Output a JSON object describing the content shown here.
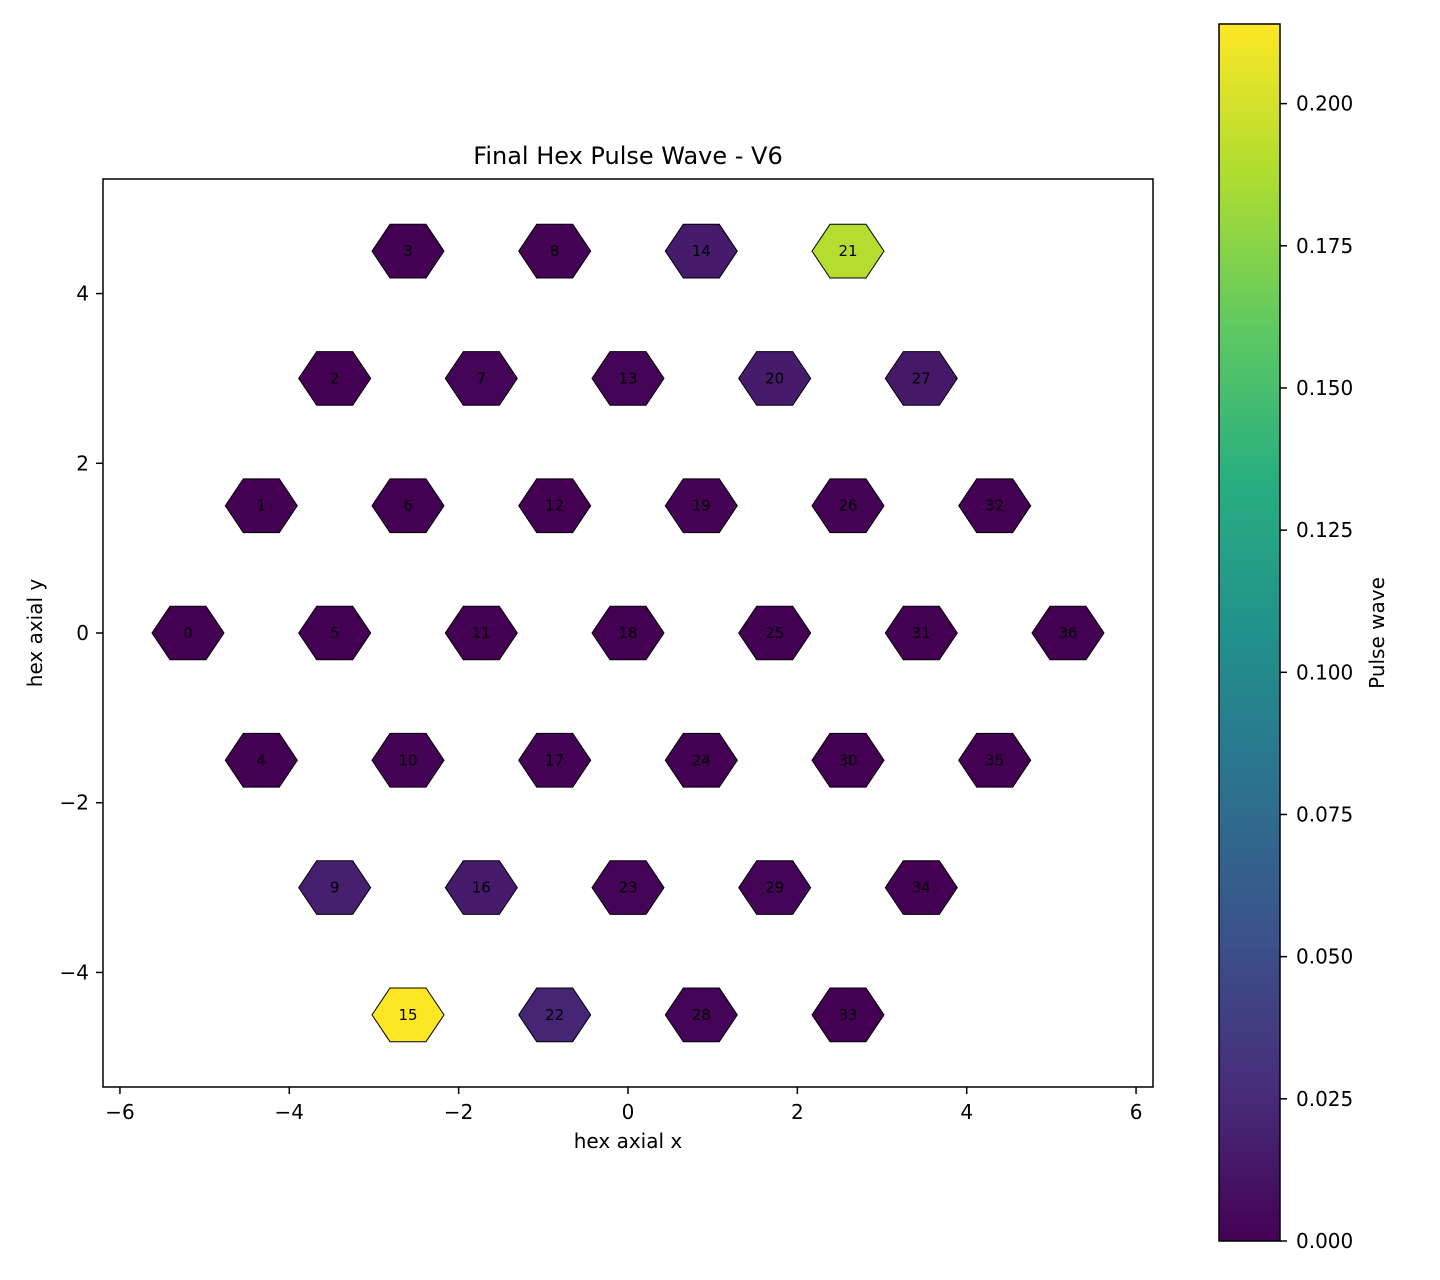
{
  "chart_data": {
    "type": "heatmap",
    "title": "Final Hex Pulse Wave - V6",
    "xlabel": "hex axial x",
    "ylabel": "hex axial y",
    "xlim": [
      -6.2,
      6.2
    ],
    "ylim": [
      -5.35,
      5.35
    ],
    "xticks": [
      -6,
      -4,
      -2,
      0,
      2,
      4,
      6
    ],
    "yticks": [
      -4,
      -2,
      0,
      2,
      4
    ],
    "colorbar": {
      "label": "Pulse wave",
      "colormap": "viridis",
      "range": [
        0.0,
        0.214
      ],
      "ticks": [
        0.0,
        0.025,
        0.05,
        0.075,
        0.1,
        0.125,
        0.15,
        0.175,
        0.2
      ],
      "tick_labels": [
        "0.000",
        "0.025",
        "0.050",
        "0.075",
        "0.100",
        "0.125",
        "0.150",
        "0.175",
        "0.200"
      ]
    },
    "cells": [
      {
        "id": "0",
        "x": -5.196,
        "y": 0.0,
        "value": 0.0
      },
      {
        "id": "1",
        "x": -4.33,
        "y": 1.5,
        "value": 0.0
      },
      {
        "id": "2",
        "x": -3.464,
        "y": 3.0,
        "value": 0.0
      },
      {
        "id": "3",
        "x": -2.598,
        "y": 4.5,
        "value": 0.0
      },
      {
        "id": "4",
        "x": -4.33,
        "y": -1.5,
        "value": 0.0
      },
      {
        "id": "5",
        "x": -3.464,
        "y": 0.0,
        "value": 0.0
      },
      {
        "id": "6",
        "x": -2.598,
        "y": 1.5,
        "value": 0.0
      },
      {
        "id": "7",
        "x": -1.732,
        "y": 3.0,
        "value": 0.002
      },
      {
        "id": "8",
        "x": -0.866,
        "y": 4.5,
        "value": 0.001
      },
      {
        "id": "9",
        "x": -3.464,
        "y": -3.0,
        "value": 0.018
      },
      {
        "id": "10",
        "x": -2.598,
        "y": -1.5,
        "value": 0.001
      },
      {
        "id": "11",
        "x": -1.732,
        "y": 0.0,
        "value": 0.0
      },
      {
        "id": "12",
        "x": -0.866,
        "y": 1.5,
        "value": 0.0
      },
      {
        "id": "13",
        "x": 0.0,
        "y": 3.0,
        "value": 0.002
      },
      {
        "id": "14",
        "x": 0.866,
        "y": 4.5,
        "value": 0.016
      },
      {
        "id": "15",
        "x": -2.598,
        "y": -4.5,
        "value": 0.214
      },
      {
        "id": "16",
        "x": -1.732,
        "y": -3.0,
        "value": 0.016
      },
      {
        "id": "17",
        "x": -0.866,
        "y": -1.5,
        "value": 0.001
      },
      {
        "id": "18",
        "x": 0.0,
        "y": 0.0,
        "value": 0.0
      },
      {
        "id": "19",
        "x": 0.866,
        "y": 1.5,
        "value": 0.001
      },
      {
        "id": "20",
        "x": 1.732,
        "y": 3.0,
        "value": 0.016
      },
      {
        "id": "21",
        "x": 2.598,
        "y": 4.5,
        "value": 0.19
      },
      {
        "id": "22",
        "x": -0.866,
        "y": -4.5,
        "value": 0.022
      },
      {
        "id": "23",
        "x": 0.0,
        "y": -3.0,
        "value": 0.002
      },
      {
        "id": "24",
        "x": 0.866,
        "y": -1.5,
        "value": 0.0
      },
      {
        "id": "25",
        "x": 1.732,
        "y": 0.0,
        "value": 0.0
      },
      {
        "id": "26",
        "x": 2.598,
        "y": 1.5,
        "value": 0.001
      },
      {
        "id": "27",
        "x": 3.464,
        "y": 3.0,
        "value": 0.014
      },
      {
        "id": "28",
        "x": 0.866,
        "y": -4.5,
        "value": 0.002
      },
      {
        "id": "29",
        "x": 1.732,
        "y": -3.0,
        "value": 0.002
      },
      {
        "id": "30",
        "x": 2.598,
        "y": -1.5,
        "value": 0.0
      },
      {
        "id": "31",
        "x": 3.464,
        "y": 0.0,
        "value": 0.0
      },
      {
        "id": "32",
        "x": 4.33,
        "y": 1.5,
        "value": 0.0
      },
      {
        "id": "33",
        "x": 2.598,
        "y": -4.5,
        "value": 0.0
      },
      {
        "id": "34",
        "x": 3.464,
        "y": -3.0,
        "value": 0.0
      },
      {
        "id": "35",
        "x": 4.33,
        "y": -1.5,
        "value": 0.0
      },
      {
        "id": "36",
        "x": 5.196,
        "y": 0.0,
        "value": 0.0
      }
    ]
  }
}
